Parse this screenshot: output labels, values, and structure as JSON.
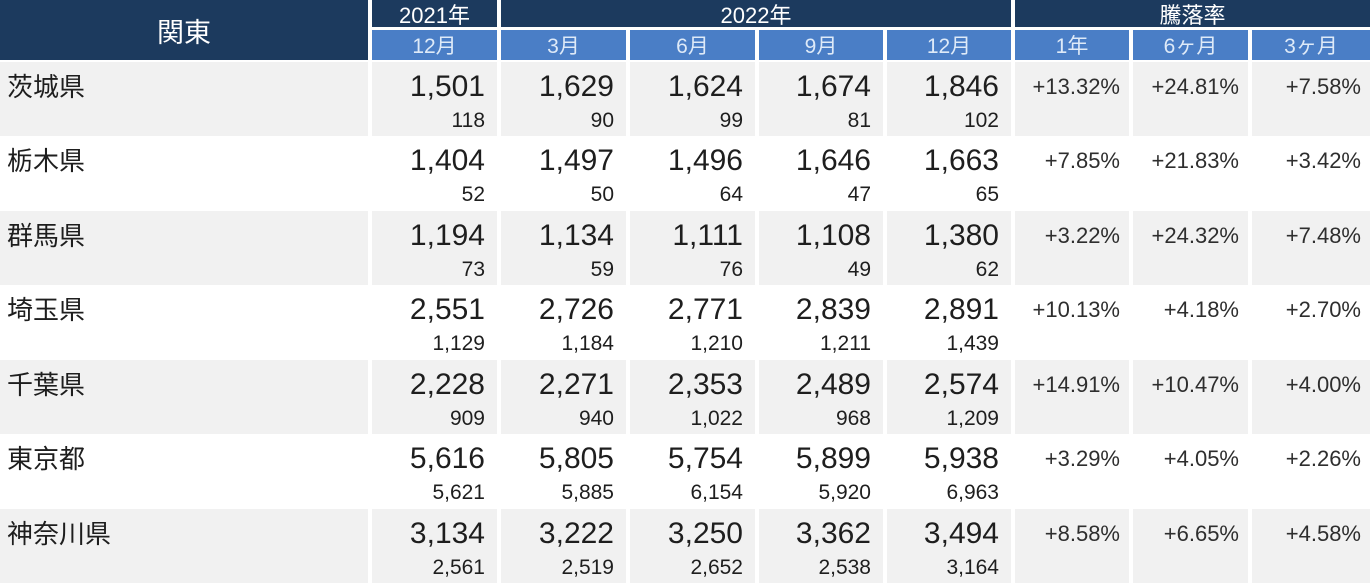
{
  "header": {
    "region": "関東",
    "year2021": "2021年",
    "year2022": "2022年",
    "change_rate": "騰落率",
    "sub_columns": [
      "12月",
      "3月",
      "6月",
      "9月",
      "12月",
      "1年",
      "6ヶ月",
      "3ヶ月"
    ]
  },
  "table": {
    "rows": [
      {
        "name": "茨城県",
        "values": [
          {
            "main": "1,501",
            "sub": "118"
          },
          {
            "main": "1,629",
            "sub": "90"
          },
          {
            "main": "1,624",
            "sub": "99"
          },
          {
            "main": "1,674",
            "sub": "81"
          },
          {
            "main": "1,846",
            "sub": "102"
          }
        ],
        "changes": [
          "+13.32%",
          "+24.81%",
          "+7.58%"
        ]
      },
      {
        "name": "栃木県",
        "values": [
          {
            "main": "1,404",
            "sub": "52"
          },
          {
            "main": "1,497",
            "sub": "50"
          },
          {
            "main": "1,496",
            "sub": "64"
          },
          {
            "main": "1,646",
            "sub": "47"
          },
          {
            "main": "1,663",
            "sub": "65"
          }
        ],
        "changes": [
          "+7.85%",
          "+21.83%",
          "+3.42%"
        ]
      },
      {
        "name": "群馬県",
        "values": [
          {
            "main": "1,194",
            "sub": "73"
          },
          {
            "main": "1,134",
            "sub": "59"
          },
          {
            "main": "1,111",
            "sub": "76"
          },
          {
            "main": "1,108",
            "sub": "49"
          },
          {
            "main": "1,380",
            "sub": "62"
          }
        ],
        "changes": [
          "+3.22%",
          "+24.32%",
          "+7.48%"
        ]
      },
      {
        "name": "埼玉県",
        "values": [
          {
            "main": "2,551",
            "sub": "1,129"
          },
          {
            "main": "2,726",
            "sub": "1,184"
          },
          {
            "main": "2,771",
            "sub": "1,210"
          },
          {
            "main": "2,839",
            "sub": "1,211"
          },
          {
            "main": "2,891",
            "sub": "1,439"
          }
        ],
        "changes": [
          "+10.13%",
          "+4.18%",
          "+2.70%"
        ]
      },
      {
        "name": "千葉県",
        "values": [
          {
            "main": "2,228",
            "sub": "909"
          },
          {
            "main": "2,271",
            "sub": "940"
          },
          {
            "main": "2,353",
            "sub": "1,022"
          },
          {
            "main": "2,489",
            "sub": "968"
          },
          {
            "main": "2,574",
            "sub": "1,209"
          }
        ],
        "changes": [
          "+14.91%",
          "+10.47%",
          "+4.00%"
        ]
      },
      {
        "name": "東京都",
        "values": [
          {
            "main": "5,616",
            "sub": "5,621"
          },
          {
            "main": "5,805",
            "sub": "5,885"
          },
          {
            "main": "5,754",
            "sub": "6,154"
          },
          {
            "main": "5,899",
            "sub": "5,920"
          },
          {
            "main": "5,938",
            "sub": "6,963"
          }
        ],
        "changes": [
          "+3.29%",
          "+4.05%",
          "+2.26%"
        ]
      },
      {
        "name": "神奈川県",
        "values": [
          {
            "main": "3,134",
            "sub": "2,561"
          },
          {
            "main": "3,222",
            "sub": "2,519"
          },
          {
            "main": "3,250",
            "sub": "2,652"
          },
          {
            "main": "3,362",
            "sub": "2,538"
          },
          {
            "main": "3,494",
            "sub": "3,164"
          }
        ],
        "changes": [
          "+8.58%",
          "+6.65%",
          "+4.58%"
        ]
      }
    ]
  },
  "colors": {
    "header_dark": "#1C3A5E",
    "header_blue": "#4A7EC6",
    "header_blue_text": "#DEEAF8",
    "stripe_gray": "#F1F1F1",
    "text_dark": "#1E1E1E",
    "text_pct": "#2E2E2E",
    "border_white": "#FFFFFF"
  }
}
